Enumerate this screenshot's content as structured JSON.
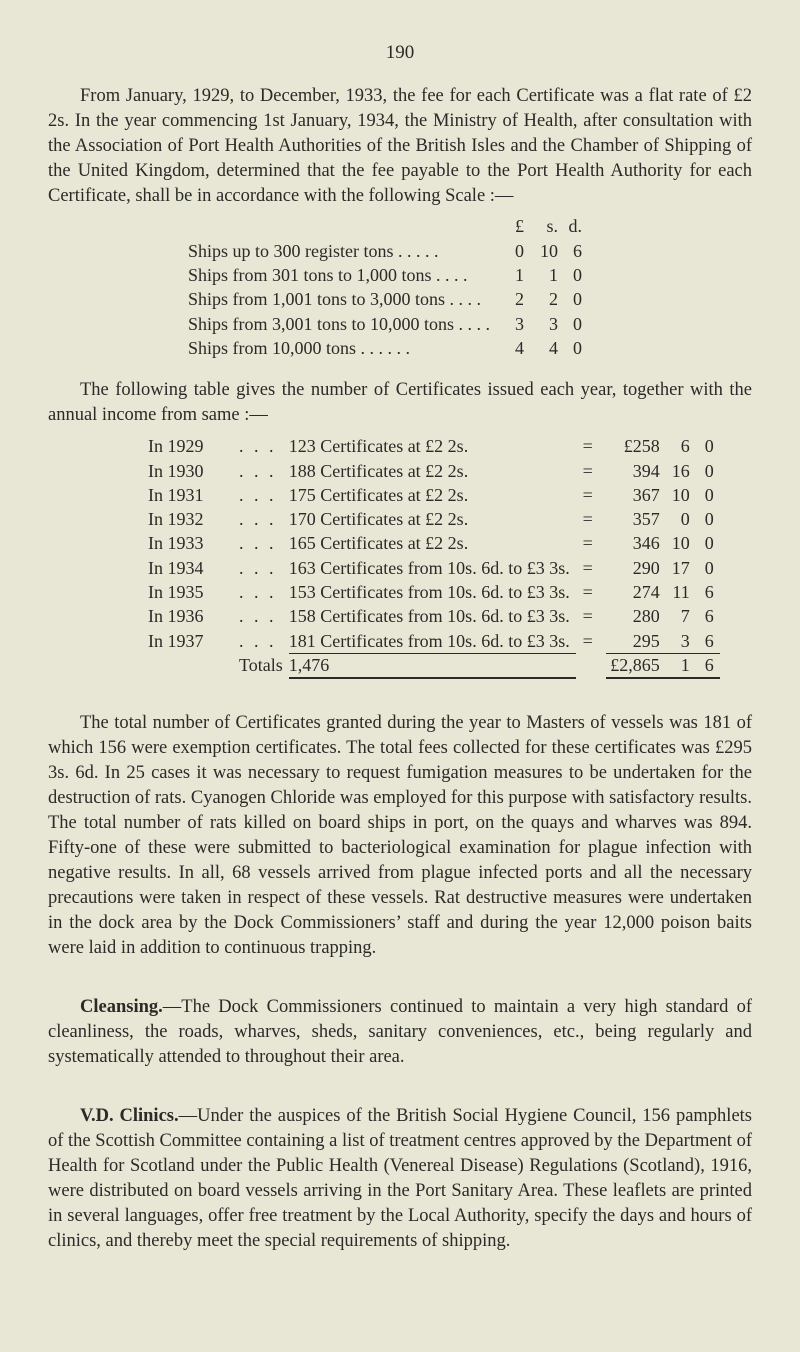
{
  "page_number": "190",
  "paragraphs": {
    "p1": "From January, 1929, to December, 1933, the fee for each Certificate was a flat rate of £2 2s.  In the year commencing 1st January, 1934, the Ministry of Health, after consultation with the Association of Port Health Authorities of the British Isles and the Chamber of Shipping of the United Kingdom, determined that the fee payable to the Port Health Authority for each Certificate, shall be in accordance with the following Scale :—",
    "p_table_intro": "The following table gives the number of Certificates issued each year, together with the annual income from same :—",
    "p2": "The total number of Certificates granted during the year to Masters of vessels was 181 of which 156 were exemption certificates.  The total fees collected for these certificates was £295 3s. 6d.  In 25 cases it was necessary to request fumigation measures to be undertaken for the destruction of rats.   Cyanogen Chloride was employed for this purpose with satisfactory results.  The total number of rats killed on board ships in port, on the quays and wharves was 894.  Fifty-one of these were submitted to bacteriological examination for plague infection with negative results.  In all, 68 vessels arrived from plague infected ports and all the necessary precautions were taken in respect of these vessels.  Rat destructive measures were undertaken in the dock area by the Dock Commissioners’ staff and during the year 12,000 poison baits were laid in addition to continuous trapping.",
    "p3_lead": "Cleansing.",
    "p3": "—The Dock Commissioners continued to maintain a very high standard of cleanliness, the roads, wharves, sheds, sanitary conveniences, etc., being regularly and systematically attended to throughout their area.",
    "p4_lead": "V.D. Clinics.",
    "p4": "—Under the auspices of the British Social Hygiene Council, 156 pamphlets of the Scottish Committee containing a list of treatment centres approved by the Department of Health for Scotland under the Public Health (Venereal Disease) Regulations (Scotland), 1916, were distributed on board vessels arriving in the Port Sanitary Area.  These leaflets are printed in several languages, offer free treatment by the Local Authority, specify the days and hours of clinics, and thereby meet the special requirements of shipping."
  },
  "fee_scale": {
    "currency_header": {
      "L": "£",
      "s": "s.",
      "d": "d."
    },
    "rows": [
      {
        "desc": "Ships up to 300 register tons    .    .    .    .    .",
        "L": "0",
        "s": "10",
        "d": "6"
      },
      {
        "desc": "Ships from 301 tons to 1,000 tons    .    .    .    .",
        "L": "1",
        "s": "1",
        "d": "0"
      },
      {
        "desc": "Ships from 1,001 tons to 3,000 tons    .    .    .    .",
        "L": "2",
        "s": "2",
        "d": "0"
      },
      {
        "desc": "Ships from 3,001 tons to 10,000 tons    .    .    .    .",
        "L": "3",
        "s": "3",
        "d": "0"
      },
      {
        "desc": "Ships from 10,000 tons    .    .    .    .    .    .",
        "L": "4",
        "s": "4",
        "d": "0"
      }
    ]
  },
  "year_table": {
    "rows": [
      {
        "year": "In 1929",
        "desc": "123 Certificates at £2 2s.",
        "eq": "=",
        "Lprefix": "£",
        "L": "258",
        "s": "6",
        "d": "0"
      },
      {
        "year": "In 1930",
        "desc": "188 Certificates at £2 2s.",
        "eq": "=",
        "Lprefix": "",
        "L": "394",
        "s": "16",
        "d": "0"
      },
      {
        "year": "In 1931",
        "desc": "175 Certificates at £2 2s.",
        "eq": "=",
        "Lprefix": "",
        "L": "367",
        "s": "10",
        "d": "0"
      },
      {
        "year": "In 1932",
        "desc": "170 Certificates at £2 2s.",
        "eq": "=",
        "Lprefix": "",
        "L": "357",
        "s": "0",
        "d": "0"
      },
      {
        "year": "In 1933",
        "desc": "165 Certificates at £2 2s.",
        "eq": "=",
        "Lprefix": "",
        "L": "346",
        "s": "10",
        "d": "0"
      },
      {
        "year": "In 1934",
        "desc": "163 Certificates from 10s. 6d. to £3 3s.",
        "eq": "=",
        "Lprefix": "",
        "L": "290",
        "s": "17",
        "d": "0"
      },
      {
        "year": "In 1935",
        "desc": "153 Certificates from 10s. 6d. to £3 3s.",
        "eq": "=",
        "Lprefix": "",
        "L": "274",
        "s": "11",
        "d": "6"
      },
      {
        "year": "In 1936",
        "desc": "158 Certificates from 10s. 6d. to £3 3s.",
        "eq": "=",
        "Lprefix": "",
        "L": "280",
        "s": "7",
        "d": "6"
      },
      {
        "year": "In 1937",
        "desc": "181 Certificates from 10s. 6d. to £3 3s.",
        "eq": "=",
        "Lprefix": "",
        "L": "295",
        "s": "3",
        "d": "6"
      }
    ],
    "totals": {
      "label": "Totals",
      "count": "1,476",
      "L": "£2,865",
      "s": "1",
      "d": "6"
    }
  }
}
